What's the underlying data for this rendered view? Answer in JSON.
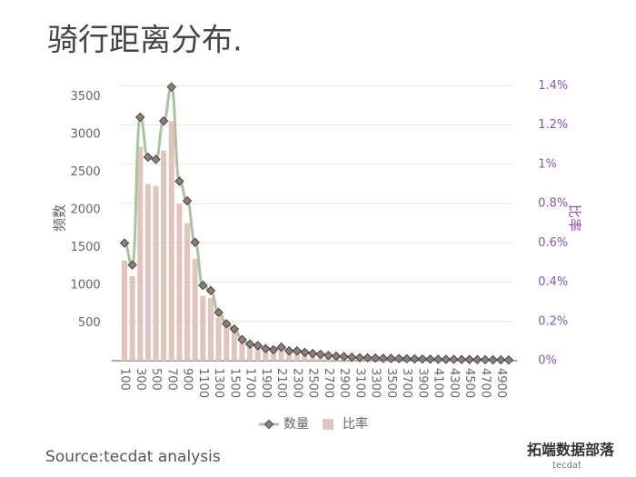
{
  "chart_data": {
    "type": "bar-line",
    "title": "骑行距离分布.",
    "source": "Source:tecdat analysis",
    "watermark": "拓端数据部落",
    "watermark_logo": "tecdat",
    "ylabel": "频数",
    "y2label": "比率",
    "categories": [
      "100",
      null,
      "300",
      null,
      "500",
      null,
      "700",
      null,
      "900",
      null,
      "1100",
      null,
      "1300",
      null,
      "1500",
      null,
      "1700",
      null,
      "1900",
      null,
      "2100",
      null,
      "2300",
      null,
      "2500",
      null,
      "2700",
      null,
      "2900",
      null,
      "3100",
      null,
      "3300",
      null,
      "3500",
      null,
      "3700",
      null,
      "3900",
      null,
      "4100",
      null,
      "4300",
      null,
      "4500",
      null,
      "4700",
      null,
      "4900",
      null
    ],
    "series": [
      {
        "name": "数量",
        "type": "line",
        "axis": "y",
        "color": "#a9c3a0",
        "marker_color": "#8d7f80",
        "values": [
          1560,
          1270,
          3230,
          2700,
          2670,
          3180,
          3630,
          2380,
          2120,
          1570,
          1000,
          930,
          640,
          490,
          420,
          280,
          220,
          200,
          160,
          145,
          180,
          130,
          130,
          110,
          95,
          85,
          70,
          60,
          55,
          45,
          40,
          38,
          35,
          32,
          30,
          28,
          26,
          24,
          22,
          20,
          19,
          18,
          17,
          16,
          15,
          14,
          13,
          12,
          11,
          10
        ]
      },
      {
        "name": "比率",
        "type": "bar",
        "axis": "y2",
        "color": "#e0c4be",
        "values": [
          0.51,
          0.43,
          1.09,
          0.9,
          0.89,
          1.07,
          1.22,
          0.8,
          0.7,
          0.52,
          0.33,
          0.32,
          0.22,
          0.18,
          0.15,
          0.09,
          0.07,
          0.065,
          0.05,
          0.045,
          0.055,
          0.04,
          0.04,
          0.03,
          0.025,
          0.02,
          0.02,
          0.018,
          0.015,
          0.012,
          0.011,
          0.01,
          0.009,
          0.008,
          0.008,
          0.007,
          0.007,
          0.006,
          0.006,
          0.005,
          0.005,
          0.005,
          0.004,
          0.004,
          0.004,
          0.004,
          0.003,
          0.003,
          0.003,
          0.003
        ]
      }
    ],
    "ylim": [
      0,
      3700
    ],
    "yticks": [
      500,
      1000,
      1500,
      2000,
      2500,
      3000,
      3500
    ],
    "y2lim": [
      0,
      1.42
    ],
    "y2ticks": [
      {
        "value": 0,
        "label": "0%"
      },
      {
        "value": 0.2,
        "label": "0.2%"
      },
      {
        "value": 0.4,
        "label": "0.4%"
      },
      {
        "value": 0.6,
        "label": "0.6%"
      },
      {
        "value": 0.8,
        "label": "0.8%"
      },
      {
        "value": 1,
        "label": "1%"
      },
      {
        "value": 1.2,
        "label": "1.2%"
      },
      {
        "value": 1.4,
        "label": "1.4%"
      }
    ],
    "grid": true
  }
}
